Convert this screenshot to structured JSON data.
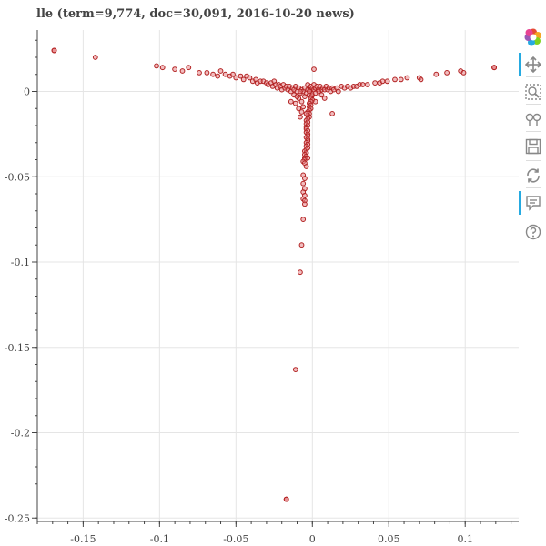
{
  "title": "lle (term=9,774, doc=30,091, 2016-10-20 news)",
  "colors": {
    "fill": "#e8868a",
    "stroke": "#b22222",
    "grid": "#e5e5e5",
    "axis": "#444444",
    "accent": "#26aae1"
  },
  "toolbar": {
    "tools": [
      {
        "name": "bokeh-logo-icon",
        "active": false
      },
      {
        "name": "pan-tool-icon",
        "active": true
      },
      {
        "name": "box-zoom-tool-icon",
        "active": false
      },
      {
        "name": "wheel-zoom-tool-icon",
        "active": false
      },
      {
        "name": "save-tool-icon",
        "active": false
      },
      {
        "name": "reset-tool-icon",
        "active": false
      },
      {
        "name": "hover-tool-icon",
        "active": true
      },
      {
        "name": "help-tool-icon",
        "active": false
      }
    ]
  },
  "chart_data": {
    "type": "scatter",
    "title": "lle (term=9,774, doc=30,091, 2016-10-20 news)",
    "xlim": [
      -0.18,
      0.135
    ],
    "ylim": [
      -0.252,
      0.036
    ],
    "xticks": [
      -0.15,
      -0.1,
      -0.05,
      0,
      0.05,
      0.1
    ],
    "xtick_labels": [
      "-0.15",
      "-0.1",
      "-0.05",
      "0",
      "0.05",
      "0.1"
    ],
    "yticks": [
      0,
      -0.05,
      -0.1,
      -0.15,
      -0.2,
      -0.25
    ],
    "ytick_labels": [
      "0",
      "-0.05",
      "-0.1",
      "-0.15",
      "-0.2",
      "-0.25"
    ],
    "grid": true,
    "points": [
      [
        -0.169,
        0.024
      ],
      [
        -0.169,
        0.024
      ],
      [
        -0.169,
        0.024
      ],
      [
        -0.142,
        0.02
      ],
      [
        -0.102,
        0.015
      ],
      [
        -0.098,
        0.014
      ],
      [
        -0.09,
        0.013
      ],
      [
        -0.085,
        0.012
      ],
      [
        -0.081,
        0.014
      ],
      [
        -0.074,
        0.011
      ],
      [
        -0.069,
        0.011
      ],
      [
        -0.065,
        0.01
      ],
      [
        -0.062,
        0.009
      ],
      [
        -0.06,
        0.012
      ],
      [
        -0.057,
        0.01
      ],
      [
        -0.054,
        0.009
      ],
      [
        -0.052,
        0.01
      ],
      [
        -0.05,
        0.008
      ],
      [
        -0.047,
        0.009
      ],
      [
        -0.045,
        0.007
      ],
      [
        -0.043,
        0.009
      ],
      [
        -0.041,
        0.008
      ],
      [
        -0.039,
        0.006
      ],
      [
        -0.037,
        0.007
      ],
      [
        -0.036,
        0.005
      ],
      [
        -0.034,
        0.006
      ],
      [
        -0.032,
        0.006
      ],
      [
        -0.03,
        0.005
      ],
      [
        -0.029,
        0.004
      ],
      [
        -0.027,
        0.005
      ],
      [
        -0.026,
        0.003
      ],
      [
        -0.025,
        0.006
      ],
      [
        -0.024,
        0.004
      ],
      [
        -0.023,
        0.002
      ],
      [
        -0.022,
        0.004
      ],
      [
        -0.021,
        0.003
      ],
      [
        -0.02,
        0.001
      ],
      [
        -0.019,
        0.004
      ],
      [
        -0.018,
        0.002
      ],
      [
        -0.017,
        0.003
      ],
      [
        -0.016,
        0.001
      ],
      [
        -0.015,
        0.003
      ],
      [
        -0.014,
        0.0
      ],
      [
        -0.013,
        0.002
      ],
      [
        -0.012,
        0.001
      ],
      [
        -0.011,
        0.003
      ],
      [
        -0.01,
        0.0
      ],
      [
        -0.009,
        0.002
      ],
      [
        -0.008,
        -0.001
      ],
      [
        -0.007,
        0.001
      ],
      [
        -0.006,
        0.0
      ],
      [
        -0.005,
        0.002
      ],
      [
        -0.004,
        -0.001
      ],
      [
        -0.003,
        0.001
      ],
      [
        -0.002,
        -0.002
      ],
      [
        -0.001,
        0.001
      ],
      [
        -0.003,
        0.004
      ],
      [
        -0.001,
        0.003
      ],
      [
        0.0,
        0.002
      ],
      [
        0.001,
        0.001
      ],
      [
        0.001,
        0.004
      ],
      [
        0.002,
        0.002
      ],
      [
        0.003,
        0.003
      ],
      [
        0.004,
        0.001
      ],
      [
        0.005,
        0.003
      ],
      [
        0.006,
        0.001
      ],
      [
        0.007,
        0.002
      ],
      [
        0.008,
        0.001
      ],
      [
        0.009,
        0.003
      ],
      [
        0.01,
        0.001
      ],
      [
        0.011,
        0.002
      ],
      [
        0.012,
        0.0
      ],
      [
        0.013,
        0.002
      ],
      [
        0.014,
        0.001
      ],
      [
        0.016,
        0.002
      ],
      [
        0.017,
        0.0
      ],
      [
        0.019,
        0.003
      ],
      [
        0.021,
        0.002
      ],
      [
        0.023,
        0.003
      ],
      [
        0.025,
        0.002
      ],
      [
        0.027,
        0.003
      ],
      [
        0.029,
        0.003
      ],
      [
        0.031,
        0.004
      ],
      [
        0.033,
        0.004
      ],
      [
        0.036,
        0.004
      ],
      [
        0.041,
        0.005
      ],
      [
        0.044,
        0.005
      ],
      [
        0.046,
        0.006
      ],
      [
        0.049,
        0.006
      ],
      [
        0.054,
        0.007
      ],
      [
        0.058,
        0.007
      ],
      [
        0.062,
        0.008
      ],
      [
        0.07,
        0.008
      ],
      [
        0.071,
        0.007
      ],
      [
        0.081,
        0.01
      ],
      [
        0.088,
        0.011
      ],
      [
        0.097,
        0.012
      ],
      [
        0.099,
        0.011
      ],
      [
        0.119,
        0.014
      ],
      [
        0.119,
        0.014
      ],
      [
        0.119,
        0.014
      ],
      [
        0.001,
        0.013
      ],
      [
        -0.0005,
        -0.003
      ],
      [
        0.0,
        -0.002
      ],
      [
        -0.001,
        -0.004
      ],
      [
        0.0,
        -0.005
      ],
      [
        -0.001,
        -0.006
      ],
      [
        -0.002,
        -0.007
      ],
      [
        -0.001,
        -0.008
      ],
      [
        -0.002,
        -0.009
      ],
      [
        -0.001,
        -0.01
      ],
      [
        -0.002,
        -0.011
      ],
      [
        -0.003,
        -0.012
      ],
      [
        -0.002,
        -0.013
      ],
      [
        -0.003,
        -0.014
      ],
      [
        -0.002,
        -0.015
      ],
      [
        -0.003,
        -0.016
      ],
      [
        -0.004,
        -0.017
      ],
      [
        -0.003,
        -0.018
      ],
      [
        -0.004,
        -0.019
      ],
      [
        -0.003,
        -0.02
      ],
      [
        -0.004,
        -0.021
      ],
      [
        -0.004,
        -0.022
      ],
      [
        -0.003,
        -0.023
      ],
      [
        -0.004,
        -0.024
      ],
      [
        -0.003,
        -0.025
      ],
      [
        -0.003,
        -0.026
      ],
      [
        -0.004,
        -0.027
      ],
      [
        -0.003,
        -0.028
      ],
      [
        -0.003,
        -0.029
      ],
      [
        -0.004,
        -0.03
      ],
      [
        -0.003,
        -0.031
      ],
      [
        -0.004,
        -0.032
      ],
      [
        -0.003,
        -0.033
      ],
      [
        -0.004,
        -0.034
      ],
      [
        -0.005,
        -0.035
      ],
      [
        -0.004,
        -0.036
      ],
      [
        -0.005,
        -0.037
      ],
      [
        -0.004,
        -0.038
      ],
      [
        -0.005,
        -0.039
      ],
      [
        -0.005,
        -0.04
      ],
      [
        -0.006,
        -0.041
      ],
      [
        -0.005,
        -0.042
      ],
      [
        -0.003,
        -0.039
      ],
      [
        -0.004,
        -0.044
      ],
      [
        -0.006,
        -0.049
      ],
      [
        -0.005,
        -0.051
      ],
      [
        -0.006,
        -0.054
      ],
      [
        -0.005,
        -0.057
      ],
      [
        -0.006,
        -0.059
      ],
      [
        -0.005,
        -0.061
      ],
      [
        -0.006,
        -0.063
      ],
      [
        -0.005,
        -0.064
      ],
      [
        -0.005,
        -0.066
      ],
      [
        -0.006,
        -0.075
      ],
      [
        -0.007,
        -0.09
      ],
      [
        -0.008,
        -0.106
      ],
      [
        -0.011,
        -0.163
      ],
      [
        -0.017,
        -0.239
      ],
      [
        -0.017,
        -0.239
      ],
      [
        -0.017,
        -0.239
      ],
      [
        -0.009,
        -0.004
      ],
      [
        -0.007,
        -0.006
      ],
      [
        -0.011,
        -0.007
      ],
      [
        -0.006,
        -0.009
      ],
      [
        -0.009,
        -0.01
      ],
      [
        -0.007,
        -0.012
      ],
      [
        -0.008,
        -0.015
      ],
      [
        -0.004,
        -0.013
      ],
      [
        0.013,
        -0.013
      ],
      [
        0.008,
        -0.004
      ],
      [
        0.002,
        -0.006
      ],
      [
        -0.012,
        -0.002
      ],
      [
        -0.014,
        -0.006
      ],
      [
        0.004,
        0.0
      ],
      [
        -0.002,
        0.0
      ],
      [
        -0.005,
        -0.003
      ],
      [
        0.002,
        -0.001
      ],
      [
        -0.008,
        0.0
      ],
      [
        -0.01,
        -0.003
      ],
      [
        0.006,
        -0.002
      ]
    ]
  }
}
